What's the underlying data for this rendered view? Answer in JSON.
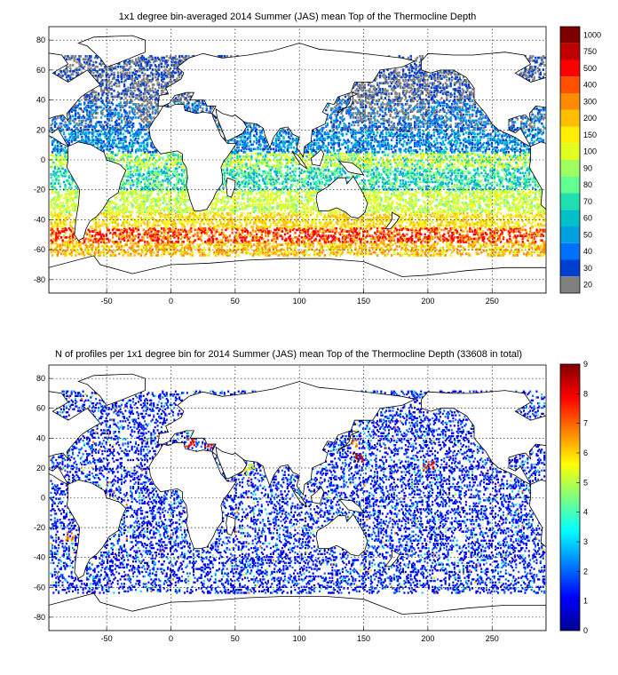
{
  "chart_data": [
    {
      "type": "heatmap",
      "title": "1x1 degree bin-averaged 2014 Summer (JAS) mean Top of the Thermocline Depth",
      "xlabel": "",
      "ylabel": "",
      "xlim": [
        -95,
        292
      ],
      "ylim": [
        -89,
        89
      ],
      "xticks": [
        -50,
        0,
        50,
        100,
        150,
        200,
        250
      ],
      "yticks": [
        80,
        60,
        40,
        20,
        0,
        -20,
        -40,
        -60,
        -80
      ],
      "grid": true,
      "colorbar": {
        "placement": "right",
        "labels": [
          "1000",
          "750",
          "500",
          "400",
          "300",
          "200",
          "150",
          "100",
          "90",
          "80",
          "70",
          "60",
          "50",
          "40",
          "30",
          "20"
        ],
        "colors": [
          "#7f0000",
          "#c00000",
          "#ff0000",
          "#ff5000",
          "#ff8c00",
          "#ffbf00",
          "#ffee00",
          "#e0ff20",
          "#a0ff60",
          "#60ff90",
          "#20e0b0",
          "#00c0c8",
          "#00a0e0",
          "#0070ff",
          "#0040d0",
          "#808080"
        ]
      },
      "bands": [
        {
          "lat": [
            60,
            70
          ],
          "range": [
            20,
            40
          ]
        },
        {
          "lat": [
            40,
            60
          ],
          "range": [
            20,
            40
          ]
        },
        {
          "lat": [
            20,
            40
          ],
          "range": [
            20,
            60
          ]
        },
        {
          "lat": [
            5,
            20
          ],
          "range": [
            30,
            70
          ]
        },
        {
          "lat": [
            -5,
            5
          ],
          "range": [
            60,
            150
          ]
        },
        {
          "lat": [
            -20,
            -5
          ],
          "range": [
            50,
            100
          ]
        },
        {
          "lat": [
            -35,
            -20
          ],
          "range": [
            80,
            150
          ]
        },
        {
          "lat": [
            -45,
            -35
          ],
          "range": [
            100,
            300
          ]
        },
        {
          "lat": [
            -55,
            -45
          ],
          "range": [
            200,
            750
          ]
        },
        {
          "lat": [
            -65,
            -55
          ],
          "range": [
            100,
            400
          ]
        }
      ]
    },
    {
      "type": "heatmap",
      "title": "N of profiles per 1x1 degree bin for 2014 Summer (JAS) mean Top of the Thermocline Depth  (33608 in total)",
      "xlabel": "",
      "ylabel": "",
      "xlim": [
        -95,
        292
      ],
      "ylim": [
        -89,
        89
      ],
      "xticks": [
        -50,
        0,
        50,
        100,
        150,
        200,
        250
      ],
      "yticks": [
        80,
        60,
        40,
        20,
        0,
        -20,
        -40,
        -60,
        -80
      ],
      "grid": true,
      "total_profiles": 33608,
      "colorbar": {
        "placement": "right",
        "range": [
          0,
          9
        ],
        "ticks": [
          9,
          8,
          7,
          6,
          5,
          4,
          3,
          2,
          1,
          0
        ],
        "colormap": "jet"
      },
      "typical_value": 1,
      "hotspots": [
        {
          "lon": 145,
          "lat": 28,
          "value": 9
        },
        {
          "lon": 15,
          "lat": 38,
          "value": 8
        },
        {
          "lon": 30,
          "lat": 36,
          "value": 8
        },
        {
          "lon": 200,
          "lat": 22,
          "value": 8
        },
        {
          "lon": 140,
          "lat": 38,
          "value": 7
        },
        {
          "lon": 60,
          "lat": 20,
          "value": 6
        },
        {
          "lon": -80,
          "lat": -25,
          "value": 7
        }
      ]
    }
  ]
}
